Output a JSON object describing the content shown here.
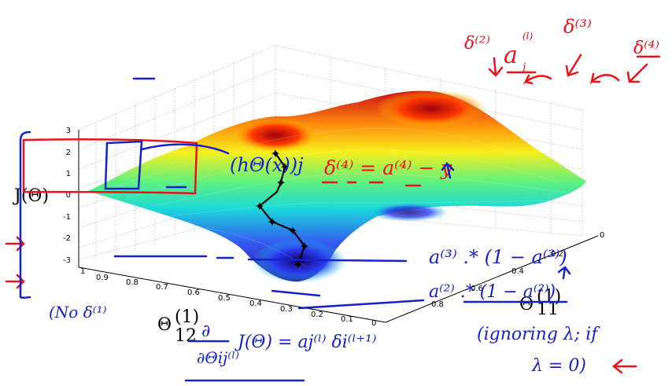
{
  "plot": {
    "z_label": "J(Θ)",
    "x_label_main": "Θ",
    "x_label_sub": "11",
    "x_label_sup": "(1)",
    "y_label_main": "Θ",
    "y_label_sub": "12",
    "y_label_sup": "(1)",
    "z_ticks": [
      "3",
      "2",
      "1",
      "0",
      "-1",
      "-2",
      "-3"
    ],
    "y_ticks": [
      "1",
      "0.9",
      "0.8",
      "0.7",
      "0.6",
      "0.5",
      "0.4",
      "0.3",
      "0.2",
      "0.1",
      "0"
    ],
    "x_ticks": [
      "0",
      "0.2",
      "0.4",
      "0.6",
      "0.8"
    ]
  },
  "annotations": {
    "red": {
      "delta2": "δ⁽²⁾",
      "delta3": "δ⁽³⁾",
      "delta4": "δ⁽⁴⁾",
      "a_label": "a",
      "a_sub": "j",
      "a_sup": "(l)",
      "delta4_eq": "δ⁽⁴⁾ = a⁽⁴⁾ − y"
    },
    "blue": {
      "h_theta": "(hΘ(x))j",
      "line1": "a⁽³⁾ .* (1 − a⁽³⁾)",
      "line2": "a⁽²⁾ .* (1 − a⁽²⁾)",
      "no_delta": "(No   δ⁽¹⁾",
      "deriv_num": "∂",
      "deriv_den": "∂Θij⁽ˡ⁾",
      "deriv_rhs": "J(Θ) = aj⁽ˡ⁾ δi⁽ˡ⁺¹⁾",
      "ignore1": "(ignoring λ; if",
      "ignore2": "λ = 0)"
    }
  }
}
